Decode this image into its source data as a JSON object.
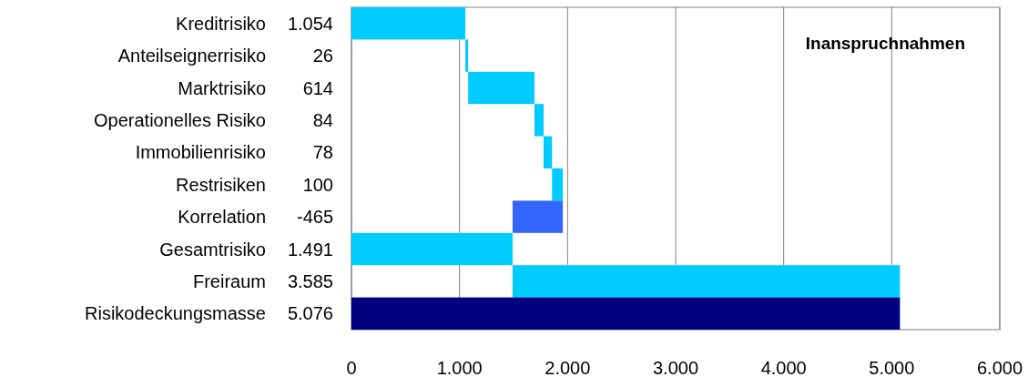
{
  "chart_data": {
    "type": "bar",
    "orientation": "horizontal",
    "title": "Inanspruchnahmen",
    "categories": [
      "Kreditrisiko",
      "Anteilseignerrisiko",
      "Marktrisiko",
      "Operationelles Risiko",
      "Immobilienrisiko",
      "Restrisiken",
      "Korrelation",
      "Gesamtrisiko",
      "Freiraum",
      "Risikodeckungsmasse"
    ],
    "values": [
      1054,
      26,
      614,
      84,
      78,
      100,
      -465,
      1491,
      3585,
      5076
    ],
    "base": [
      0,
      1054,
      1080,
      1694,
      1778,
      1856,
      1956,
      0,
      1491,
      0
    ],
    "value_labels": [
      "1.054",
      "26",
      "614",
      "84",
      "78",
      "100",
      "-465",
      "1.491",
      "3.585",
      "5.076"
    ],
    "colors": [
      "#00ccff",
      "#00ccff",
      "#00ccff",
      "#00ccff",
      "#00ccff",
      "#00ccff",
      "#3366ff",
      "#00ccff",
      "#00ccff",
      "#000080"
    ],
    "xlim": [
      0,
      6000
    ],
    "xticks": [
      {
        "value": 0,
        "label": "0"
      },
      {
        "value": 1000,
        "label": "1.000"
      },
      {
        "value": 2000,
        "label": "2.000"
      },
      {
        "value": 3000,
        "label": "3.000"
      },
      {
        "value": 4000,
        "label": "4.000"
      },
      {
        "value": 5000,
        "label": "5.000"
      },
      {
        "value": 6000,
        "label": "6.000"
      }
    ],
    "grid": "x"
  }
}
